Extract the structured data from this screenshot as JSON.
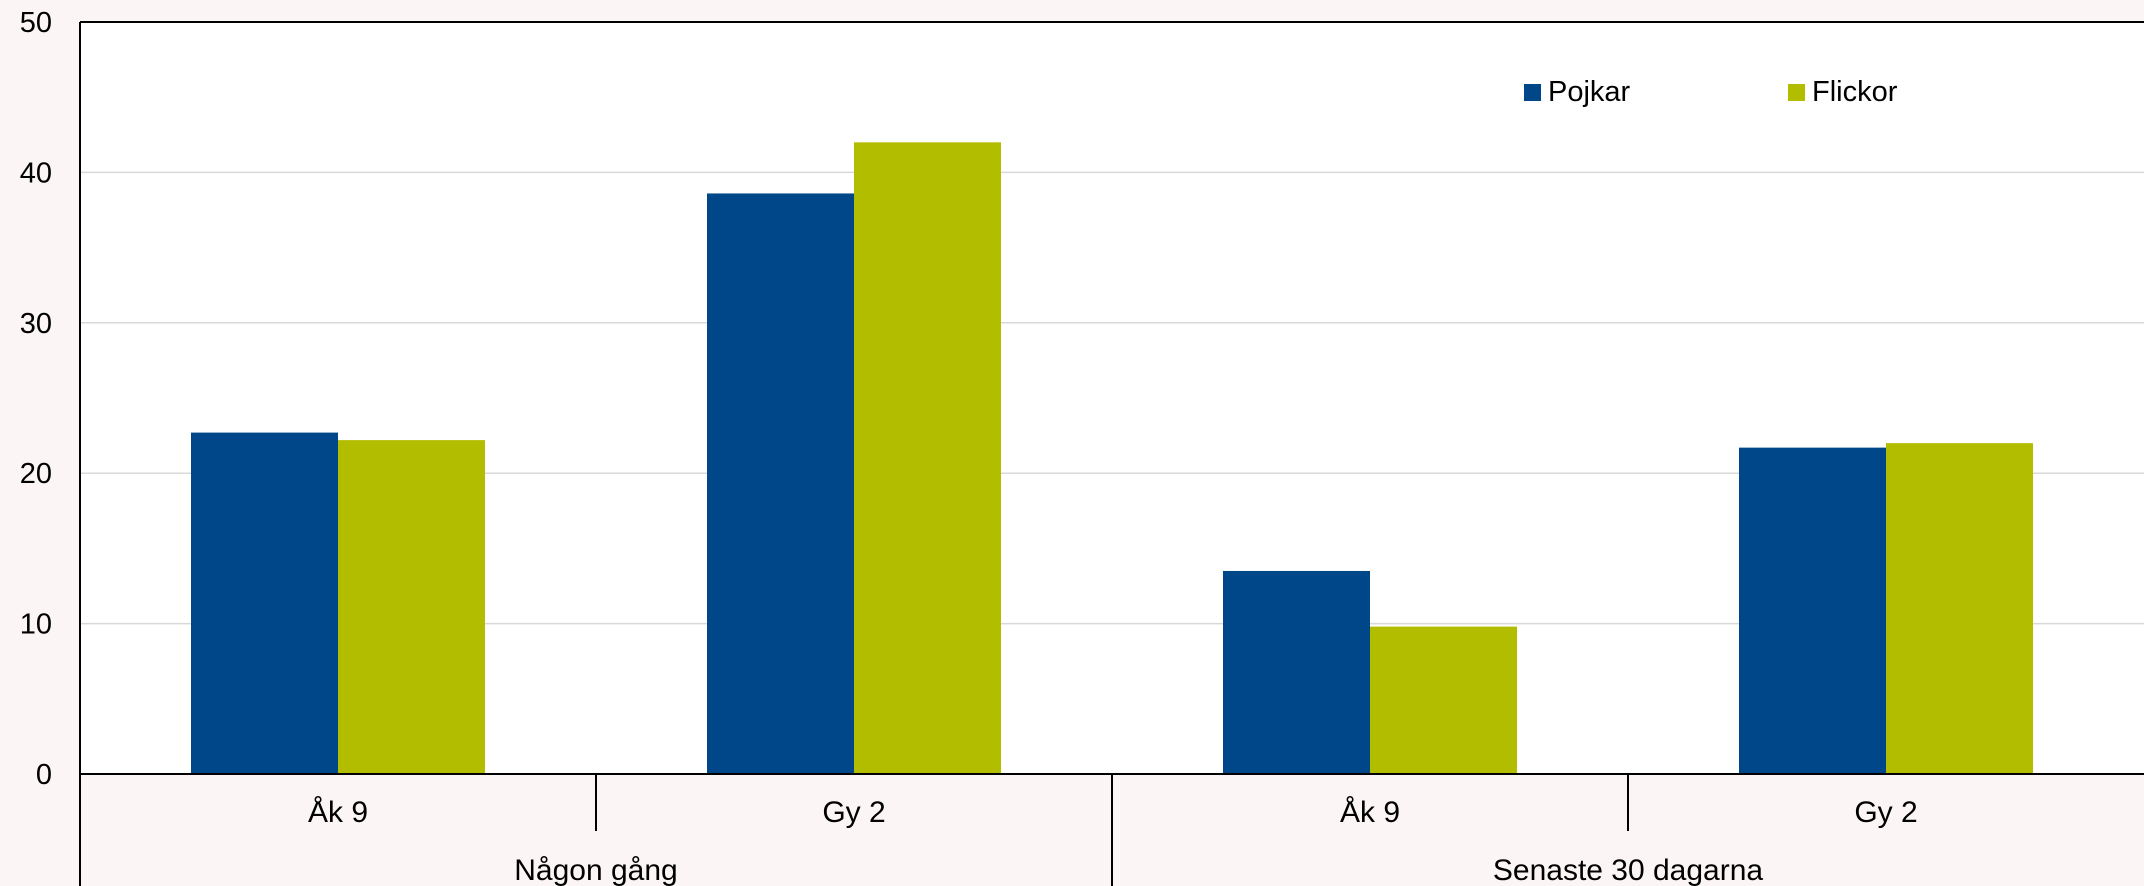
{
  "chart_data": {
    "type": "bar",
    "title": "",
    "xlabel": "",
    "ylabel": "",
    "ylim": [
      0,
      50
    ],
    "yticks": [
      "0",
      "10",
      "20",
      "30",
      "40",
      "50"
    ],
    "grid": true,
    "legend_position": "top-right",
    "groups": [
      {
        "label": "Någon gång",
        "categories": [
          "Åk 9",
          "Gy 2"
        ]
      },
      {
        "label": "Senaste 30 dagarna",
        "categories": [
          "Åk 9",
          "Gy 2"
        ]
      }
    ],
    "categories": [
      "Åk 9",
      "Gy 2",
      "Åk 9",
      "Gy 2"
    ],
    "series": [
      {
        "name": "Pojkar",
        "color": "#00478a",
        "values": [
          22.7,
          38.6,
          13.5,
          21.7
        ]
      },
      {
        "name": "Flickor",
        "color": "#b3bd00",
        "values": [
          22.2,
          42.0,
          9.8,
          22.0
        ]
      }
    ]
  }
}
